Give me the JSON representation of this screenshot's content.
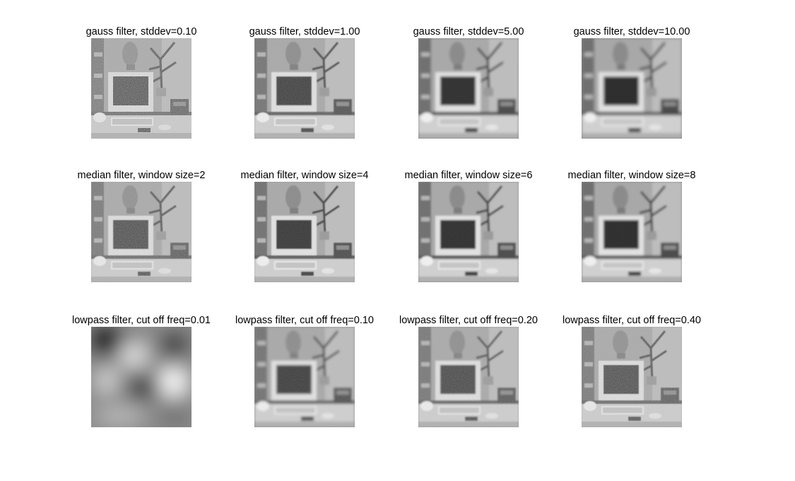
{
  "figure": {
    "panels": [
      {
        "title": "gauss filter, stddev=0.10",
        "filter": "gauss",
        "level": 0.1
      },
      {
        "title": "gauss filter, stddev=1.00",
        "filter": "gauss",
        "level": 1.0
      },
      {
        "title": "gauss filter, stddev=5.00",
        "filter": "gauss",
        "level": 5.0
      },
      {
        "title": "gauss filter, stddev=10.00",
        "filter": "gauss",
        "level": 10.0
      },
      {
        "title": "median filter, window size=2",
        "filter": "median",
        "level": 2
      },
      {
        "title": "median filter, window size=4",
        "filter": "median",
        "level": 4
      },
      {
        "title": "median filter, window size=6",
        "filter": "median",
        "level": 6
      },
      {
        "title": "median filter, window size=8",
        "filter": "median",
        "level": 8
      },
      {
        "title": "lowpass filter, cut off freq=0.01",
        "filter": "lowpass",
        "level": 0.01
      },
      {
        "title": "lowpass filter, cut off freq=0.10",
        "filter": "lowpass",
        "level": 0.1
      },
      {
        "title": "lowpass filter, cut off freq=0.20",
        "filter": "lowpass",
        "level": 0.2
      },
      {
        "title": "lowpass filter, cut off freq=0.40",
        "filter": "lowpass",
        "level": 0.4
      }
    ]
  }
}
